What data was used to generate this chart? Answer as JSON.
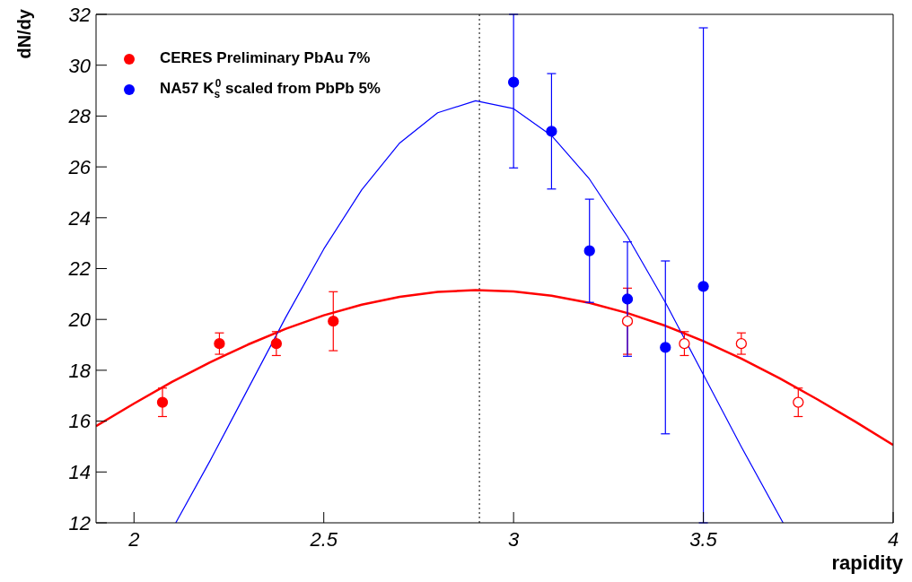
{
  "chart_data": {
    "type": "scatter",
    "xlabel": "rapidity",
    "ylabel": "dN/dy",
    "xlim": [
      1.9,
      4
    ],
    "xticks": [
      2,
      2.5,
      3,
      3.5,
      4
    ],
    "ylim": [
      12,
      32
    ],
    "yticks": [
      12,
      14,
      16,
      18,
      20,
      22,
      24,
      26,
      28,
      30,
      32
    ],
    "grid": false,
    "legend": "top left",
    "marker": "circle",
    "ref_lines": [
      {
        "axis": "x",
        "value": 2.91,
        "line_style": "dotted",
        "color": "#000000"
      }
    ],
    "series": [
      {
        "name": "CERES Preliminary PbAu 7%",
        "color": "#ff0000",
        "x": [
          2.075,
          2.225,
          2.375,
          2.525
        ],
        "values": [
          16.74,
          19.05,
          19.05,
          19.93
        ],
        "errors": [
          0.56,
          0.42,
          0.47,
          1.16
        ]
      },
      {
        "color": "#ff0000",
        "x": [
          3.3,
          3.45,
          3.6,
          3.75
        ],
        "values": [
          19.93,
          19.05,
          19.05,
          16.74
        ],
        "errors": [
          1.3,
          0.47,
          0.42,
          0.56
        ]
      },
      {
        "name": "NA57 K$_{s}$$^{0}$ scaled from PbPb 5%",
        "color": "#0000ff",
        "x": [
          3.0,
          3.1,
          3.2,
          3.3,
          3.4,
          3.5
        ],
        "values": [
          29.33,
          27.4,
          22.7,
          20.8,
          18.9,
          21.3
        ],
        "errors": [
          [
            25.96,
            32
          ],
          2.27,
          2.03,
          2.25,
          3.4,
          [
            12,
            31.47
          ]
        ]
      },
      {
        "type": "line",
        "marker": "none",
        "color": "#ff0000",
        "x": [
          1.9,
          2.0,
          2.1,
          2.2,
          2.3,
          2.4,
          2.5,
          2.6,
          2.7,
          2.8,
          2.9,
          3.0,
          3.1,
          3.2,
          3.3,
          3.4,
          3.5,
          3.6,
          3.7,
          3.8,
          3.9,
          4.0
        ],
        "values": [
          15.8,
          16.69,
          17.54,
          18.31,
          19.01,
          19.63,
          20.16,
          20.58,
          20.89,
          21.08,
          21.15,
          21.1,
          20.93,
          20.65,
          20.25,
          19.75,
          19.15,
          18.46,
          17.69,
          16.86,
          15.98,
          15.06
        ]
      },
      {
        "type": "line",
        "marker": "none",
        "color": "#0000ff",
        "x": [
          2.11,
          2.2,
          2.3,
          2.4,
          2.5,
          2.6,
          2.7,
          2.8,
          2.9,
          3.0,
          3.1,
          3.2,
          3.3,
          3.4,
          3.5,
          3.6,
          3.71
        ],
        "values": [
          12.0,
          14.43,
          17.26,
          20.09,
          22.77,
          25.1,
          26.94,
          28.13,
          28.6,
          28.29,
          27.23,
          25.52,
          23.26,
          20.67,
          17.83,
          14.99,
          12.0
        ]
      }
    ]
  }
}
